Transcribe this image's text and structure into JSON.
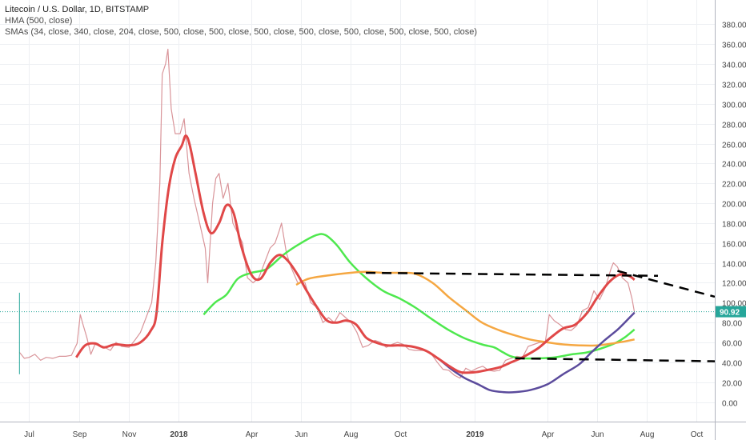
{
  "chart_data": {
    "type": "line",
    "title": "Litecoin / U.S. Dollar, 1D, BITSTAMP",
    "indicators": [
      "HMA (500, close)",
      "SMAs (34, close, 340, close, 204, close, 500, close, 500, close, 500, close, 500, close, 500, close, 500, close, 500, close)"
    ],
    "y_axis": {
      "range": [
        -8,
        388
      ],
      "ticks": [
        0,
        20,
        40,
        60,
        80,
        100,
        120,
        140,
        160,
        180,
        200,
        220,
        240,
        260,
        280,
        300,
        320,
        340,
        360,
        380
      ],
      "tick_labels": [
        "0.00",
        "20.00",
        "40.00",
        "60.00",
        "80.00",
        "100.00",
        "120.00",
        "140.00",
        "160.00",
        "180.00",
        "200.00",
        "220.00",
        "240.00",
        "260.00",
        "280.00",
        "300.00",
        "320.00",
        "340.00",
        "360.00",
        "380.00"
      ]
    },
    "x_axis": {
      "range": [
        "2017-05-26",
        "2019-10-24"
      ],
      "ticks": [
        {
          "date": "2017-07-01",
          "label": "Jul"
        },
        {
          "date": "2017-09-01",
          "label": "Sep"
        },
        {
          "date": "2017-11-01",
          "label": "Nov"
        },
        {
          "date": "2018-01-01",
          "label": "2018"
        },
        {
          "date": "2018-04-01",
          "label": "Apr"
        },
        {
          "date": "2018-06-01",
          "label": "Jun"
        },
        {
          "date": "2018-08-01",
          "label": "Aug"
        },
        {
          "date": "2018-10-01",
          "label": "Oct"
        },
        {
          "date": "2019-01-01",
          "label": "2019"
        },
        {
          "date": "2019-04-01",
          "label": "Apr"
        },
        {
          "date": "2019-06-01",
          "label": "Jun"
        },
        {
          "date": "2019-08-01",
          "label": "Aug"
        },
        {
          "date": "2019-10-01",
          "label": "Oct"
        }
      ]
    },
    "grid": true,
    "last_price": {
      "value": 90.92,
      "label": "90.92",
      "color": "#26a69a"
    },
    "colors": {
      "price": "#d9959a",
      "hma": "#e04848",
      "sma_green": "#4ee84e",
      "sma_orange": "#f5a742",
      "sma_purple": "#5b4b9c",
      "trend": "#000000"
    },
    "price_series": {
      "name": "LTCUSD",
      "points": [
        [
          "2017-06-19",
          50
        ],
        [
          "2017-06-25",
          44
        ],
        [
          "2017-07-01",
          45
        ],
        [
          "2017-07-08",
          48
        ],
        [
          "2017-07-15",
          42
        ],
        [
          "2017-07-22",
          45
        ],
        [
          "2017-07-30",
          44
        ],
        [
          "2017-08-07",
          46
        ],
        [
          "2017-08-15",
          46
        ],
        [
          "2017-08-22",
          47
        ],
        [
          "2017-08-29",
          59
        ],
        [
          "2017-09-02",
          88
        ],
        [
          "2017-09-06",
          76
        ],
        [
          "2017-09-10",
          65
        ],
        [
          "2017-09-15",
          48
        ],
        [
          "2017-09-20",
          58
        ],
        [
          "2017-09-30",
          56
        ],
        [
          "2017-10-09",
          52
        ],
        [
          "2017-10-16",
          60
        ],
        [
          "2017-10-23",
          56
        ],
        [
          "2017-11-01",
          55
        ],
        [
          "2017-11-08",
          62
        ],
        [
          "2017-11-15",
          70
        ],
        [
          "2017-11-22",
          85
        ],
        [
          "2017-11-29",
          100
        ],
        [
          "2017-12-04",
          140
        ],
        [
          "2017-12-09",
          220
        ],
        [
          "2017-12-12",
          330
        ],
        [
          "2017-12-16",
          340
        ],
        [
          "2017-12-19",
          355
        ],
        [
          "2017-12-23",
          295
        ],
        [
          "2017-12-28",
          270
        ],
        [
          "2018-01-03",
          270
        ],
        [
          "2018-01-08",
          285
        ],
        [
          "2018-01-14",
          230
        ],
        [
          "2018-01-20",
          205
        ],
        [
          "2018-01-27",
          180
        ],
        [
          "2018-02-03",
          155
        ],
        [
          "2018-02-06",
          120
        ],
        [
          "2018-02-12",
          200
        ],
        [
          "2018-02-16",
          225
        ],
        [
          "2018-02-20",
          230
        ],
        [
          "2018-02-25",
          205
        ],
        [
          "2018-03-03",
          220
        ],
        [
          "2018-03-09",
          180
        ],
        [
          "2018-03-15",
          170
        ],
        [
          "2018-03-21",
          160
        ],
        [
          "2018-03-27",
          125
        ],
        [
          "2018-04-03",
          120
        ],
        [
          "2018-04-10",
          125
        ],
        [
          "2018-04-17",
          140
        ],
        [
          "2018-04-24",
          155
        ],
        [
          "2018-04-30",
          160
        ],
        [
          "2018-05-05",
          172
        ],
        [
          "2018-05-08",
          180
        ],
        [
          "2018-05-14",
          150
        ],
        [
          "2018-05-20",
          135
        ],
        [
          "2018-05-28",
          120
        ],
        [
          "2018-06-06",
          120
        ],
        [
          "2018-06-13",
          100
        ],
        [
          "2018-06-21",
          95
        ],
        [
          "2018-06-28",
          80
        ],
        [
          "2018-07-05",
          85
        ],
        [
          "2018-07-12",
          80
        ],
        [
          "2018-07-19",
          90
        ],
        [
          "2018-07-26",
          85
        ],
        [
          "2018-08-02",
          80
        ],
        [
          "2018-08-09",
          70
        ],
        [
          "2018-08-16",
          55
        ],
        [
          "2018-08-23",
          57
        ],
        [
          "2018-08-31",
          62
        ],
        [
          "2018-09-07",
          60
        ],
        [
          "2018-09-14",
          55
        ],
        [
          "2018-09-21",
          58
        ],
        [
          "2018-09-28",
          60
        ],
        [
          "2018-10-05",
          58
        ],
        [
          "2018-10-12",
          53
        ],
        [
          "2018-10-19",
          52
        ],
        [
          "2018-10-26",
          52
        ],
        [
          "2018-11-02",
          52
        ],
        [
          "2018-11-09",
          48
        ],
        [
          "2018-11-16",
          40
        ],
        [
          "2018-11-23",
          33
        ],
        [
          "2018-11-30",
          32
        ],
        [
          "2018-12-07",
          27
        ],
        [
          "2018-12-14",
          24
        ],
        [
          "2018-12-21",
          34
        ],
        [
          "2018-12-28",
          31
        ],
        [
          "2019-01-04",
          34
        ],
        [
          "2019-01-11",
          36
        ],
        [
          "2019-01-18",
          32
        ],
        [
          "2019-01-25",
          31
        ],
        [
          "2019-02-01",
          32
        ],
        [
          "2019-02-08",
          42
        ],
        [
          "2019-02-15",
          44
        ],
        [
          "2019-02-22",
          46
        ],
        [
          "2019-03-01",
          45
        ],
        [
          "2019-03-08",
          56
        ],
        [
          "2019-03-15",
          58
        ],
        [
          "2019-03-22",
          60
        ],
        [
          "2019-03-29",
          60
        ],
        [
          "2019-04-03",
          88
        ],
        [
          "2019-04-09",
          82
        ],
        [
          "2019-04-16",
          78
        ],
        [
          "2019-04-23",
          73
        ],
        [
          "2019-04-30",
          72
        ],
        [
          "2019-05-07",
          77
        ],
        [
          "2019-05-14",
          92
        ],
        [
          "2019-05-21",
          95
        ],
        [
          "2019-05-28",
          112
        ],
        [
          "2019-06-04",
          103
        ],
        [
          "2019-06-11",
          115
        ],
        [
          "2019-06-18",
          134
        ],
        [
          "2019-06-21",
          140
        ],
        [
          "2019-06-26",
          136
        ],
        [
          "2019-07-02",
          125
        ],
        [
          "2019-07-09",
          120
        ],
        [
          "2019-07-14",
          104
        ],
        [
          "2019-07-17",
          90
        ]
      ]
    },
    "hma": {
      "name": "HMA (500, close)",
      "points": [
        [
          "2017-08-28",
          45
        ],
        [
          "2017-09-08",
          57
        ],
        [
          "2017-09-20",
          59
        ],
        [
          "2017-10-01",
          55
        ],
        [
          "2017-10-15",
          58
        ],
        [
          "2017-11-01",
          57
        ],
        [
          "2017-11-15",
          60
        ],
        [
          "2017-11-28",
          72
        ],
        [
          "2017-12-05",
          90
        ],
        [
          "2017-12-12",
          160
        ],
        [
          "2017-12-20",
          215
        ],
        [
          "2017-12-28",
          245
        ],
        [
          "2018-01-05",
          258
        ],
        [
          "2018-01-10",
          268
        ],
        [
          "2018-01-15",
          258
        ],
        [
          "2018-01-22",
          230
        ],
        [
          "2018-02-01",
          190
        ],
        [
          "2018-02-10",
          170
        ],
        [
          "2018-02-20",
          180
        ],
        [
          "2018-03-01",
          198
        ],
        [
          "2018-03-10",
          190
        ],
        [
          "2018-03-20",
          155
        ],
        [
          "2018-04-01",
          128
        ],
        [
          "2018-04-12",
          124
        ],
        [
          "2018-04-24",
          140
        ],
        [
          "2018-05-05",
          148
        ],
        [
          "2018-05-16",
          142
        ],
        [
          "2018-05-28",
          128
        ],
        [
          "2018-06-08",
          112
        ],
        [
          "2018-06-21",
          95
        ],
        [
          "2018-07-03",
          82
        ],
        [
          "2018-07-15",
          80
        ],
        [
          "2018-07-27",
          82
        ],
        [
          "2018-08-08",
          78
        ],
        [
          "2018-08-20",
          65
        ],
        [
          "2018-09-01",
          60
        ],
        [
          "2018-09-15",
          57
        ],
        [
          "2018-09-30",
          57
        ],
        [
          "2018-10-15",
          56
        ],
        [
          "2018-11-01",
          52
        ],
        [
          "2018-11-15",
          45
        ],
        [
          "2018-12-01",
          36
        ],
        [
          "2018-12-15",
          30
        ],
        [
          "2019-01-01",
          30
        ],
        [
          "2019-01-15",
          32
        ],
        [
          "2019-02-01",
          35
        ],
        [
          "2019-02-15",
          40
        ],
        [
          "2019-03-01",
          45
        ],
        [
          "2019-03-20",
          54
        ],
        [
          "2019-04-05",
          65
        ],
        [
          "2019-04-20",
          74
        ],
        [
          "2019-05-05",
          78
        ],
        [
          "2019-05-20",
          90
        ],
        [
          "2019-06-01",
          105
        ],
        [
          "2019-06-15",
          120
        ],
        [
          "2019-06-28",
          128
        ],
        [
          "2019-07-10",
          127
        ],
        [
          "2019-07-17",
          123
        ]
      ]
    },
    "sma_green": {
      "points": [
        [
          "2018-02-01",
          88
        ],
        [
          "2018-02-15",
          100
        ],
        [
          "2018-03-01",
          108
        ],
        [
          "2018-03-15",
          124
        ],
        [
          "2018-04-01",
          130
        ],
        [
          "2018-04-20",
          134
        ],
        [
          "2018-05-10",
          148
        ],
        [
          "2018-06-01",
          160
        ],
        [
          "2018-06-20",
          168
        ],
        [
          "2018-07-01",
          168
        ],
        [
          "2018-07-15",
          158
        ],
        [
          "2018-08-01",
          140
        ],
        [
          "2018-08-20",
          125
        ],
        [
          "2018-09-10",
          112
        ],
        [
          "2018-10-01",
          104
        ],
        [
          "2018-10-20",
          95
        ],
        [
          "2018-11-10",
          83
        ],
        [
          "2018-12-01",
          72
        ],
        [
          "2018-12-20",
          64
        ],
        [
          "2019-01-10",
          58
        ],
        [
          "2019-01-25",
          55
        ],
        [
          "2019-02-05",
          50
        ],
        [
          "2019-02-15",
          46
        ],
        [
          "2019-03-01",
          44
        ],
        [
          "2019-03-20",
          44
        ],
        [
          "2019-04-10",
          45
        ],
        [
          "2019-05-01",
          48
        ],
        [
          "2019-05-20",
          50
        ],
        [
          "2019-06-10",
          55
        ],
        [
          "2019-06-25",
          60
        ],
        [
          "2019-07-05",
          65
        ],
        [
          "2019-07-17",
          73
        ]
      ]
    },
    "sma_orange": {
      "points": [
        [
          "2018-05-26",
          118
        ],
        [
          "2018-06-10",
          124
        ],
        [
          "2018-07-01",
          127
        ],
        [
          "2018-08-01",
          130
        ],
        [
          "2018-08-20",
          131
        ],
        [
          "2018-09-10",
          130
        ],
        [
          "2018-10-01",
          130
        ],
        [
          "2018-10-20",
          129
        ],
        [
          "2018-11-10",
          120
        ],
        [
          "2018-12-01",
          105
        ],
        [
          "2018-12-20",
          93
        ],
        [
          "2019-01-10",
          80
        ],
        [
          "2019-02-01",
          72
        ],
        [
          "2019-02-20",
          67
        ],
        [
          "2019-03-10",
          63
        ],
        [
          "2019-04-01",
          60
        ],
        [
          "2019-04-20",
          58
        ],
        [
          "2019-05-10",
          57
        ],
        [
          "2019-06-01",
          57
        ],
        [
          "2019-06-20",
          59
        ],
        [
          "2019-07-05",
          61
        ],
        [
          "2019-07-17",
          63
        ]
      ]
    },
    "sma_purple": {
      "points": [
        [
          "2018-11-20",
          42
        ],
        [
          "2018-12-05",
          32
        ],
        [
          "2018-12-20",
          24
        ],
        [
          "2019-01-05",
          18
        ],
        [
          "2019-01-20",
          12
        ],
        [
          "2019-02-05",
          10
        ],
        [
          "2019-02-20",
          10
        ],
        [
          "2019-03-10",
          12
        ],
        [
          "2019-04-01",
          18
        ],
        [
          "2019-04-20",
          28
        ],
        [
          "2019-05-10",
          38
        ],
        [
          "2019-05-25",
          50
        ],
        [
          "2019-06-10",
          62
        ],
        [
          "2019-06-25",
          72
        ],
        [
          "2019-07-05",
          80
        ],
        [
          "2019-07-17",
          90
        ]
      ]
    },
    "trendlines": [
      {
        "style": "dashed",
        "points": [
          [
            "2018-08-20",
            130
          ],
          [
            "2019-08-15",
            127
          ]
        ]
      },
      {
        "style": "dashed",
        "points": [
          [
            "2019-06-26",
            132
          ],
          [
            "2019-10-24",
            106
          ]
        ]
      },
      {
        "style": "dashed",
        "points": [
          [
            "2019-02-20",
            44
          ],
          [
            "2019-10-24",
            41
          ]
        ]
      }
    ]
  }
}
